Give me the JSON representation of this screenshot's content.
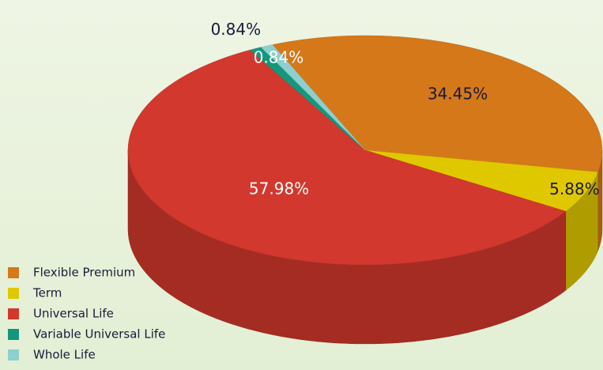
{
  "chart_data": {
    "type": "pie3d",
    "categories": [
      "Flexible Premium",
      "Term",
      "Universal Life",
      "Variable Universal Life",
      "Whole Life"
    ],
    "values": [
      34.45,
      5.88,
      57.98,
      0.84,
      0.84
    ],
    "value_labels": [
      "34.45%",
      "5.88%",
      "57.98%",
      "0.84%",
      "0.84%"
    ],
    "colors": [
      "#d4781a",
      "#e0c800",
      "#d2382d",
      "#14977c",
      "#8fcfcf"
    ],
    "legend": "bottom-left"
  }
}
